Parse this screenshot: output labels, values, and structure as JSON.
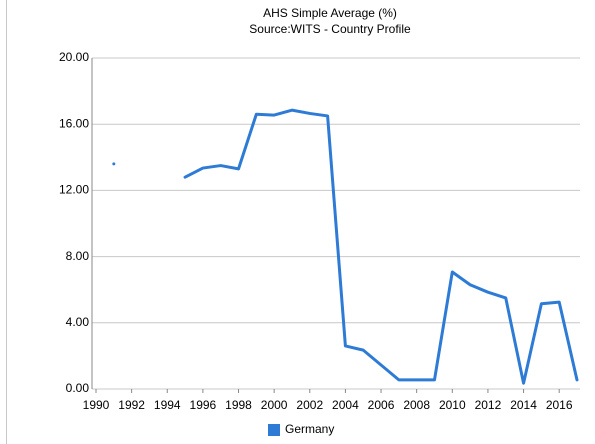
{
  "chart_data": {
    "type": "line",
    "title": "AHS Simple Average (%)",
    "subtitle": "Source:WITS - Country Profile",
    "x": [
      1990,
      1991,
      1992,
      1993,
      1994,
      1995,
      1996,
      1997,
      1998,
      1999,
      2000,
      2001,
      2002,
      2003,
      2004,
      2005,
      2006,
      2007,
      2008,
      2009,
      2010,
      2011,
      2012,
      2013,
      2014,
      2015,
      2016,
      2017
    ],
    "series": [
      {
        "name": "Germany",
        "color": "#2e7bd6",
        "values": [
          null,
          13.6,
          null,
          null,
          null,
          12.8,
          13.35,
          13.5,
          13.3,
          16.6,
          16.55,
          16.85,
          16.65,
          16.5,
          2.6,
          2.35,
          1.45,
          0.55,
          0.55,
          0.55,
          7.07,
          6.3,
          5.85,
          5.5,
          0.35,
          5.15,
          5.25,
          0.55
        ]
      }
    ],
    "xlim": [
      1990,
      2017
    ],
    "xticks": [
      1990,
      1992,
      1994,
      1996,
      1998,
      2000,
      2002,
      2004,
      2006,
      2008,
      2010,
      2012,
      2014,
      2016
    ],
    "ylim": [
      0,
      20
    ],
    "yticks": [
      {
        "value": 0,
        "label": "0.00"
      },
      {
        "value": 4,
        "label": "4.00"
      },
      {
        "value": 8,
        "label": "8.00"
      },
      {
        "value": 12,
        "label": "12.00"
      },
      {
        "value": 16,
        "label": "16.00"
      },
      {
        "value": 20,
        "label": "20.00"
      }
    ],
    "grid": true,
    "legend": "bottom"
  }
}
